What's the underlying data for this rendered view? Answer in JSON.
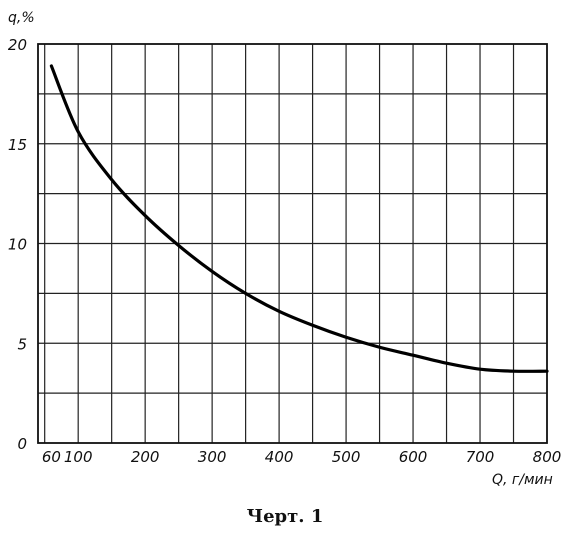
{
  "chart_data": {
    "type": "line",
    "xlabel": "Q, г/мин",
    "ylabel": "q,%",
    "xlim": [
      40,
      800
    ],
    "ylim": [
      0,
      20
    ],
    "x_ticks": [
      "60",
      "100",
      "200",
      "300",
      "400",
      "500",
      "600",
      "700",
      "800"
    ],
    "y_ticks": [
      "0",
      "5",
      "10",
      "15",
      "20"
    ],
    "grid": true,
    "series": [
      {
        "x": [
          60,
          100,
          150,
          200,
          250,
          300,
          350,
          400,
          450,
          500,
          550,
          600,
          650,
          700,
          750,
          800
        ],
        "y": [
          18.9,
          15.6,
          13.2,
          11.4,
          9.9,
          8.6,
          7.5,
          6.6,
          5.9,
          5.3,
          4.8,
          4.4,
          4.0,
          3.7,
          3.6,
          3.6
        ]
      }
    ]
  },
  "caption": "Черт. 1"
}
